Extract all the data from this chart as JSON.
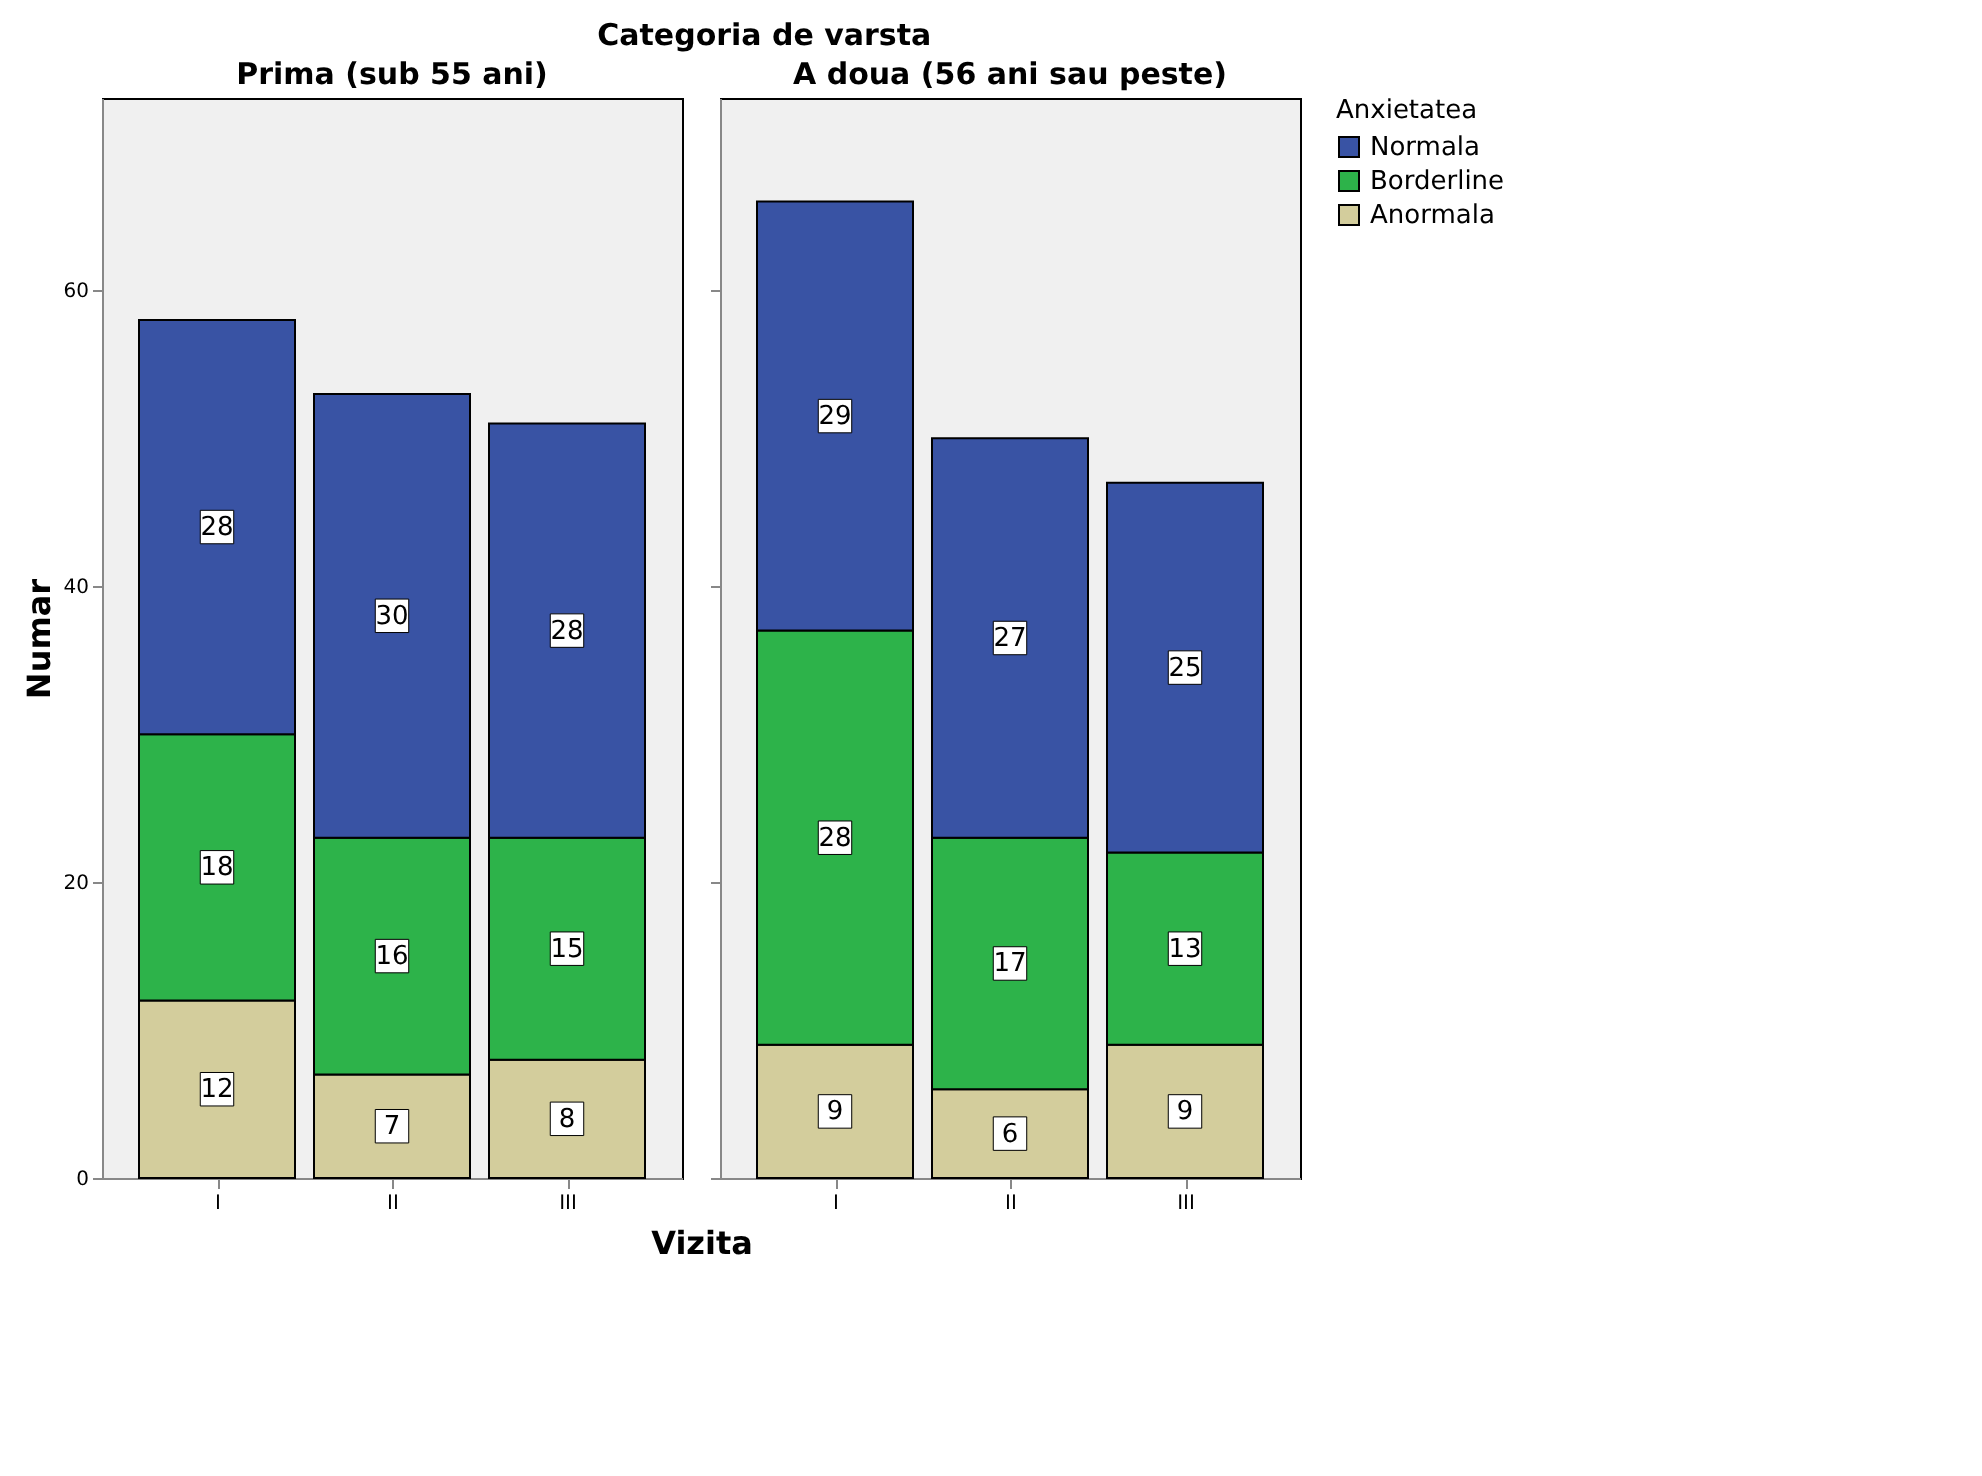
{
  "chart_data": [
    {
      "type": "bar",
      "stacked": true,
      "title": "Prima (sub 55 ani)",
      "xlabel": "Vizita",
      "ylabel": "Numar",
      "annotations": [
        "Categoria de varsta"
      ],
      "categories": [
        "I",
        "II",
        "III"
      ],
      "grid": false,
      "data_labels": true,
      "ylim": [
        0,
        73
      ],
      "yticks": [
        0,
        20,
        40,
        60
      ],
      "series": [
        {
          "color": "#d3cd9c",
          "values": [
            12,
            7,
            8
          ]
        },
        {
          "color": "#2db34a",
          "values": [
            18,
            16,
            15
          ]
        },
        {
          "color": "#3953a4",
          "values": [
            28,
            30,
            28
          ]
        }
      ]
    },
    {
      "type": "bar",
      "stacked": true,
      "title": "A doua (56 ani sau peste)",
      "categories": [
        "I",
        "II",
        "III"
      ],
      "legend_title": "Anxietatea",
      "legend": "top right",
      "grid": false,
      "data_labels": true,
      "tick_labels": "x",
      "ylim": [
        0,
        73
      ],
      "yticks": [
        0,
        20,
        40,
        60
      ],
      "series": [
        {
          "name": "Anormala",
          "color": "#d3cd9c",
          "values": [
            9,
            6,
            9
          ]
        },
        {
          "name": "Borderline",
          "color": "#2db34a",
          "values": [
            28,
            17,
            13
          ]
        },
        {
          "name": "Normala",
          "color": "#3953a4",
          "values": [
            29,
            27,
            25
          ]
        }
      ]
    }
  ]
}
